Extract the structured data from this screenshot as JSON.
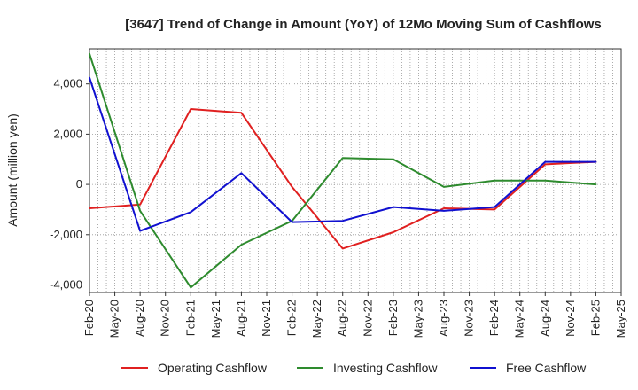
{
  "chart_data": {
    "type": "line",
    "title": "[3647]  Trend of Change in Amount (YoY) of 12Mo Moving Sum of Cashflows",
    "xlabel": "",
    "ylabel": "Amount (million yen)",
    "ylim": [
      -4300,
      5400
    ],
    "yticks": [
      -4000,
      -2000,
      0,
      2000,
      4000
    ],
    "ytick_labels": [
      "-4,000",
      "-2,000",
      "0",
      "2,000",
      "4,000"
    ],
    "xtick_labels": [
      "Feb-20",
      "May-20",
      "Aug-20",
      "Nov-20",
      "Feb-21",
      "May-21",
      "Aug-21",
      "Nov-21",
      "Feb-22",
      "May-22",
      "Aug-22",
      "Nov-22",
      "Feb-23",
      "May-23",
      "Aug-23",
      "Nov-23",
      "Feb-24",
      "May-24",
      "Aug-24",
      "Nov-24",
      "Feb-25",
      "May-25"
    ],
    "x": [
      "Feb-20",
      "Aug-20",
      "Feb-21",
      "Aug-21",
      "Feb-22",
      "Aug-22",
      "Feb-23",
      "Aug-23",
      "Feb-24",
      "Aug-24",
      "Feb-25"
    ],
    "grid": true,
    "legend_position": "bottom",
    "series": [
      {
        "name": "Operating Cashflow",
        "color": "#e02020",
        "values": [
          -950,
          -800,
          3000,
          2850,
          -100,
          -2550,
          -1900,
          -950,
          -1000,
          800,
          900
        ]
      },
      {
        "name": "Investing Cashflow",
        "color": "#2e8b2e",
        "values": [
          5200,
          -1050,
          -4100,
          -2400,
          -1450,
          1050,
          1000,
          -100,
          150,
          150,
          0
        ]
      },
      {
        "name": "Free Cashflow",
        "color": "#1010d0",
        "values": [
          4250,
          -1850,
          -1100,
          450,
          -1500,
          -1450,
          -900,
          -1050,
          -900,
          900,
          900
        ]
      }
    ]
  }
}
